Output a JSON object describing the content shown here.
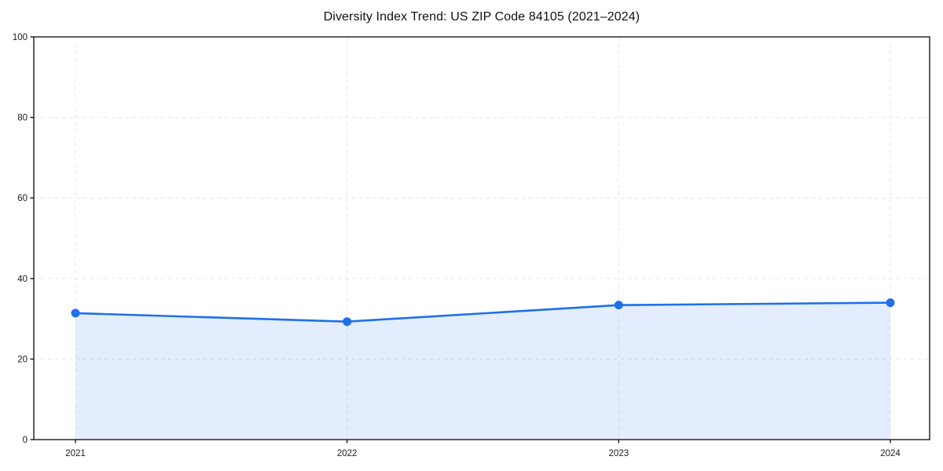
{
  "figure": {
    "background": "#ffffff"
  },
  "chart_data": {
    "type": "line",
    "title": "Diversity Index Trend: US ZIP Code 84105 (2021–2024)",
    "x": [
      "2021",
      "2022",
      "2023",
      "2024"
    ],
    "series": [
      {
        "name": "Diversity Index",
        "values": [
          31.4,
          29.3,
          33.4,
          34.0
        ]
      }
    ],
    "xlabel": "",
    "ylabel": "",
    "ylim": [
      0,
      100
    ],
    "yticks": [
      0,
      20,
      40,
      60,
      80,
      100
    ],
    "grid": "dashed, horizontal and vertical",
    "legend_position": "none",
    "marker": "circle",
    "area_fill": true,
    "colors": {
      "line": "#1f6feb",
      "marker": "#1f6feb",
      "fill": "#1f6feb",
      "fill_opacity": 0.12,
      "grid": "#e3e3e3",
      "axis": "#1a1a1a",
      "text": "#1a1a1a",
      "background": "#ffffff"
    }
  }
}
